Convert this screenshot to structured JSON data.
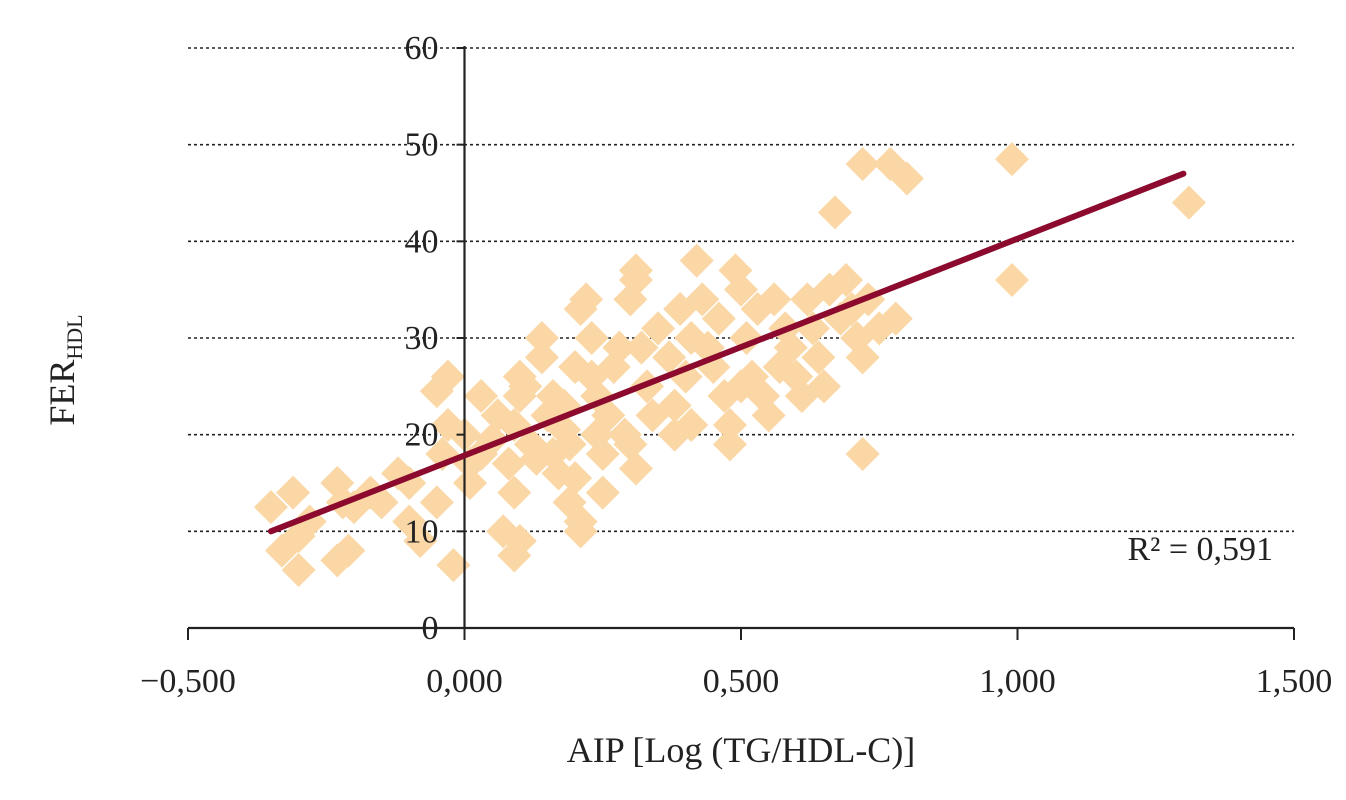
{
  "chart_data": {
    "type": "scatter",
    "xlabel": "AIP [Log (TG/HDL-C)]",
    "ylabel_main": "FER",
    "ylabel_sub": "HDL",
    "xlim": [
      -0.5,
      1.5
    ],
    "ylim": [
      0,
      60
    ],
    "x_ticks": [
      -0.5,
      0,
      0.5,
      1,
      1.5
    ],
    "x_tick_labels": [
      "−0,500",
      "0,000",
      "0,500",
      "1,000",
      "1,500"
    ],
    "y_ticks": [
      0,
      10,
      20,
      30,
      40,
      50,
      60
    ],
    "y_tick_labels": [
      "0",
      "10",
      "20",
      "30",
      "40",
      "50",
      "60"
    ],
    "grid": "horizontal-dashed",
    "annotation": "R² = 0,591",
    "marker_color": "#fad7a5",
    "line_color": "#8b0a2e",
    "trendline": {
      "x": [
        -0.35,
        1.3
      ],
      "y": [
        10,
        47
      ]
    },
    "points": [
      [
        -0.35,
        12.5
      ],
      [
        -0.31,
        14
      ],
      [
        -0.33,
        8
      ],
      [
        -0.3,
        9.5
      ],
      [
        -0.3,
        6
      ],
      [
        -0.28,
        11
      ],
      [
        -0.23,
        7
      ],
      [
        -0.21,
        8
      ],
      [
        -0.22,
        13
      ],
      [
        -0.23,
        15
      ],
      [
        -0.2,
        12.5
      ],
      [
        -0.17,
        14
      ],
      [
        -0.15,
        13
      ],
      [
        -0.12,
        16
      ],
      [
        -0.1,
        15
      ],
      [
        -0.1,
        11
      ],
      [
        -0.08,
        9
      ],
      [
        -0.05,
        13
      ],
      [
        -0.04,
        18
      ],
      [
        -0.02,
        6.5
      ],
      [
        -0.03,
        21
      ],
      [
        -0.05,
        24.5
      ],
      [
        -0.03,
        26
      ],
      [
        0.0,
        20
      ],
      [
        0.01,
        15
      ],
      [
        0.01,
        17
      ],
      [
        0.03,
        24
      ],
      [
        0.03,
        18
      ],
      [
        0.05,
        19.5
      ],
      [
        0.06,
        22
      ],
      [
        0.07,
        10
      ],
      [
        0.08,
        17
      ],
      [
        0.09,
        21
      ],
      [
        0.09,
        14
      ],
      [
        0.1,
        9
      ],
      [
        0.09,
        7.5
      ],
      [
        0.1,
        24
      ],
      [
        0.1,
        26
      ],
      [
        0.11,
        25
      ],
      [
        0.12,
        19
      ],
      [
        0.13,
        17.5
      ],
      [
        0.14,
        28
      ],
      [
        0.14,
        30
      ],
      [
        0.15,
        22
      ],
      [
        0.16,
        24
      ],
      [
        0.16,
        18
      ],
      [
        0.17,
        16
      ],
      [
        0.18,
        23
      ],
      [
        0.18,
        20.5
      ],
      [
        0.19,
        19
      ],
      [
        0.19,
        13
      ],
      [
        0.2,
        15.5
      ],
      [
        0.21,
        11
      ],
      [
        0.21,
        10
      ],
      [
        0.2,
        27
      ],
      [
        0.21,
        33
      ],
      [
        0.22,
        34
      ],
      [
        0.23,
        30
      ],
      [
        0.23,
        26
      ],
      [
        0.24,
        24
      ],
      [
        0.24,
        20
      ],
      [
        0.25,
        18
      ],
      [
        0.25,
        14
      ],
      [
        0.26,
        22
      ],
      [
        0.27,
        27
      ],
      [
        0.28,
        29
      ],
      [
        0.29,
        20
      ],
      [
        0.3,
        19
      ],
      [
        0.3,
        34
      ],
      [
        0.31,
        36
      ],
      [
        0.31,
        37
      ],
      [
        0.32,
        29
      ],
      [
        0.31,
        16.5
      ],
      [
        0.33,
        25
      ],
      [
        0.34,
        22
      ],
      [
        0.35,
        31
      ],
      [
        0.37,
        28
      ],
      [
        0.38,
        23
      ],
      [
        0.38,
        20
      ],
      [
        0.39,
        33
      ],
      [
        0.4,
        26
      ],
      [
        0.41,
        21
      ],
      [
        0.41,
        30
      ],
      [
        0.42,
        38
      ],
      [
        0.43,
        34
      ],
      [
        0.44,
        29
      ],
      [
        0.45,
        27
      ],
      [
        0.46,
        32
      ],
      [
        0.47,
        24
      ],
      [
        0.48,
        19
      ],
      [
        0.48,
        21
      ],
      [
        0.49,
        37
      ],
      [
        0.5,
        35
      ],
      [
        0.5,
        25
      ],
      [
        0.51,
        30
      ],
      [
        0.52,
        26
      ],
      [
        0.53,
        33
      ],
      [
        0.54,
        24
      ],
      [
        0.55,
        22
      ],
      [
        0.56,
        34
      ],
      [
        0.57,
        27
      ],
      [
        0.58,
        31
      ],
      [
        0.59,
        29
      ],
      [
        0.6,
        26
      ],
      [
        0.61,
        24
      ],
      [
        0.62,
        34
      ],
      [
        0.63,
        31
      ],
      [
        0.64,
        28
      ],
      [
        0.65,
        25
      ],
      [
        0.66,
        35
      ],
      [
        0.67,
        43
      ],
      [
        0.68,
        32
      ],
      [
        0.69,
        36
      ],
      [
        0.7,
        33
      ],
      [
        0.71,
        30
      ],
      [
        0.72,
        18
      ],
      [
        0.72,
        28
      ],
      [
        0.72,
        48
      ],
      [
        0.73,
        34
      ],
      [
        0.75,
        31
      ],
      [
        0.77,
        48
      ],
      [
        0.78,
        32
      ],
      [
        0.8,
        46.5
      ],
      [
        0.99,
        48.5
      ],
      [
        0.99,
        36
      ],
      [
        1.31,
        44
      ]
    ]
  }
}
